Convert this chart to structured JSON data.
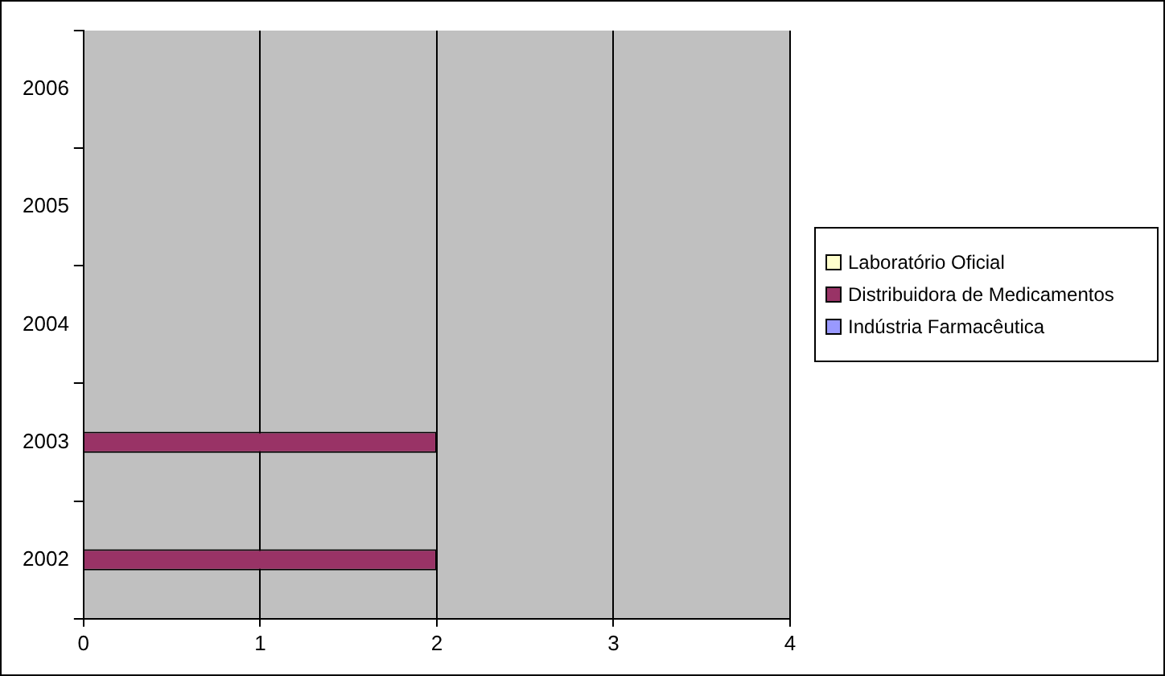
{
  "chart_data": {
    "type": "bar",
    "orientation": "horizontal",
    "categories": [
      "2006",
      "2005",
      "2004",
      "2003",
      "2002"
    ],
    "series": [
      {
        "name": "Laboratório Oficial",
        "color": "#ffffcc",
        "values": [
          0,
          0,
          0,
          0,
          0
        ]
      },
      {
        "name": "Distribuidora de Medicamentos",
        "color": "#993366",
        "values": [
          0,
          0,
          0,
          2,
          2
        ]
      },
      {
        "name": "Indústria Farmacêutica",
        "color": "#9999ff",
        "values": [
          0,
          0,
          0,
          0,
          0
        ]
      }
    ],
    "xlim": [
      0,
      4
    ],
    "xticks": [
      0,
      1,
      2,
      3,
      4
    ],
    "grid": "x",
    "legend": "right"
  }
}
